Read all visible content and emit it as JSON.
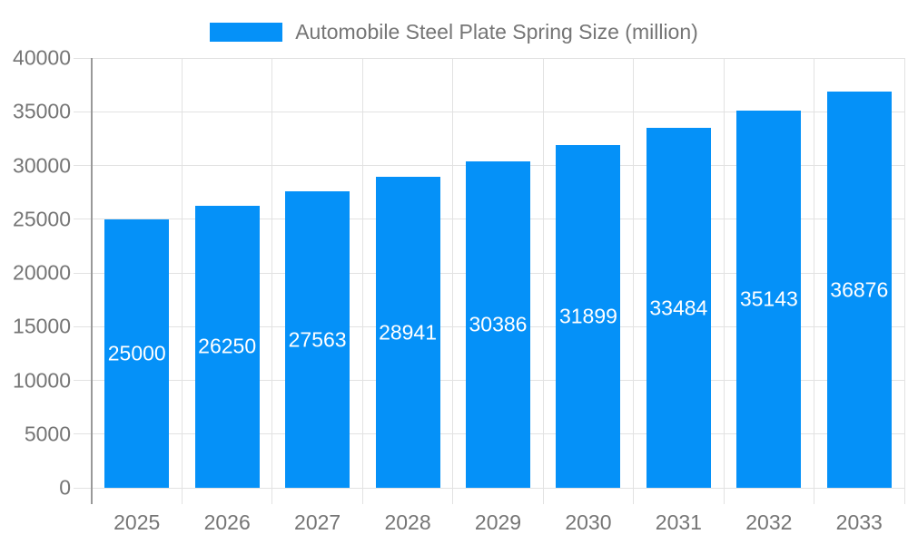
{
  "legend": {
    "label": "Automobile Steel Plate Spring Size (million)"
  },
  "chart_data": {
    "type": "bar",
    "title": "Automobile Steel Plate Spring Size (million)",
    "categories": [
      "2025",
      "2026",
      "2027",
      "2028",
      "2029",
      "2030",
      "2031",
      "2032",
      "2033"
    ],
    "values": [
      25000,
      26250,
      27563,
      28941,
      30386,
      31899,
      33484,
      35143,
      36876
    ],
    "series": [
      {
        "name": "Automobile Steel Plate Spring Size (million)",
        "values": [
          25000,
          26250,
          27563,
          28941,
          30386,
          31899,
          33484,
          35143,
          36876
        ]
      }
    ],
    "value_labels_shown": true,
    "xlabel": "",
    "ylabel": "",
    "ylim": [
      0,
      40000
    ],
    "ytick_step": 5000,
    "ytick_labels": [
      "0",
      "5000",
      "10000",
      "15000",
      "20000",
      "25000",
      "30000",
      "35000",
      "40000"
    ],
    "grid": true,
    "legend_position": "top-center",
    "colors": {
      "bar": "#0591f8",
      "value_label": "#ffffff",
      "axis_text": "#757575",
      "grid_line": "#e2e2e2",
      "axis_line": "#999999",
      "background": "#ffffff"
    }
  }
}
